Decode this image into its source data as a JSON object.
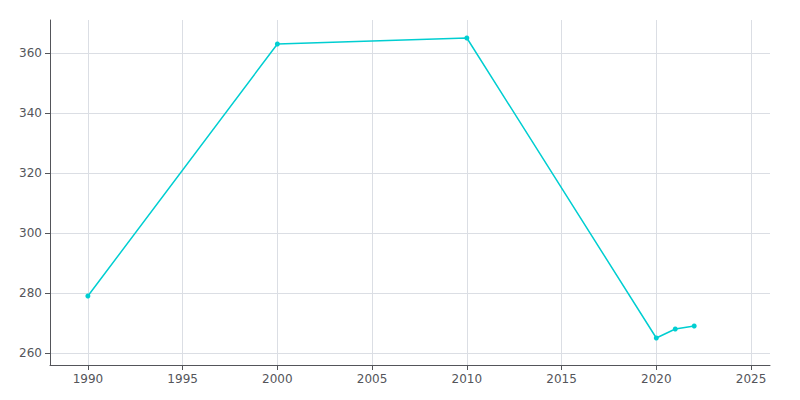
{
  "chart_data": {
    "type": "line",
    "x": [
      1990,
      2000,
      2010,
      2020,
      2021,
      2022
    ],
    "values": [
      279,
      363,
      365,
      265,
      268,
      269
    ],
    "color": "#00CED1",
    "marker": "circle",
    "xlim": [
      1988,
      2026
    ],
    "ylim": [
      256,
      371
    ],
    "xticks": [
      1990,
      1995,
      2000,
      2005,
      2010,
      2015,
      2020,
      2025
    ],
    "yticks": [
      260,
      280,
      300,
      320,
      340,
      360
    ],
    "grid": true
  }
}
